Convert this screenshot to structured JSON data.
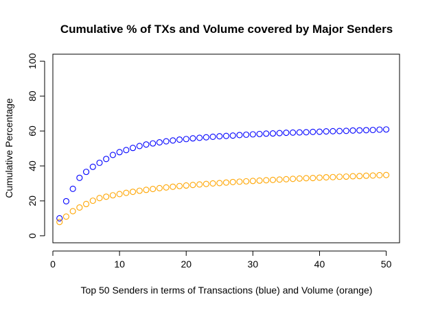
{
  "chart_data": {
    "type": "scatter",
    "title": "Cumulative % of TXs and Volume covered by Major Senders",
    "xlabel": "Top 50 Senders in terms of Transactions (blue) and Volume (orange)",
    "ylabel": "Cumulative Percentage",
    "xlim": [
      0,
      52
    ],
    "ylim": [
      -4,
      104
    ],
    "xticks": [
      0,
      10,
      20,
      30,
      40,
      50
    ],
    "yticks": [
      0,
      20,
      40,
      60,
      80,
      100
    ],
    "grid": false,
    "legend": "none",
    "marker": "open-circle",
    "x": [
      1,
      2,
      3,
      4,
      5,
      6,
      7,
      8,
      9,
      10,
      11,
      12,
      13,
      14,
      15,
      16,
      17,
      18,
      19,
      20,
      21,
      22,
      23,
      24,
      25,
      26,
      27,
      28,
      29,
      30,
      31,
      32,
      33,
      34,
      35,
      36,
      37,
      38,
      39,
      40,
      41,
      42,
      43,
      44,
      45,
      46,
      47,
      48,
      49,
      50
    ],
    "series": [
      {
        "color": "#0000ff",
        "values": [
          10.0,
          19.8,
          26.9,
          33.2,
          36.6,
          39.5,
          41.8,
          44.0,
          46.3,
          47.9,
          49.1,
          50.3,
          51.4,
          52.3,
          52.9,
          53.5,
          54.1,
          54.6,
          55.1,
          55.4,
          55.8,
          56.1,
          56.4,
          56.7,
          57.0,
          57.2,
          57.4,
          57.7,
          57.9,
          58.1,
          58.3,
          58.5,
          58.6,
          58.8,
          59.0,
          59.1,
          59.2,
          59.3,
          59.5,
          59.6,
          59.8,
          59.9,
          60.0,
          60.1,
          60.3,
          60.4,
          60.5,
          60.6,
          60.8,
          60.9
        ]
      },
      {
        "color": "#ffa500",
        "values": [
          7.9,
          11.0,
          14.1,
          16.2,
          18.2,
          20.1,
          21.6,
          22.4,
          23.2,
          23.9,
          24.6,
          25.2,
          25.8,
          26.3,
          26.8,
          27.3,
          27.7,
          28.1,
          28.5,
          28.8,
          29.1,
          29.4,
          29.7,
          30.0,
          30.2,
          30.5,
          30.8,
          31.0,
          31.2,
          31.4,
          31.6,
          31.8,
          32.0,
          32.2,
          32.4,
          32.6,
          32.8,
          33.0,
          33.1,
          33.3,
          33.5,
          33.6,
          33.8,
          33.9,
          34.1,
          34.2,
          34.4,
          34.5,
          34.7,
          34.8
        ]
      }
    ]
  }
}
